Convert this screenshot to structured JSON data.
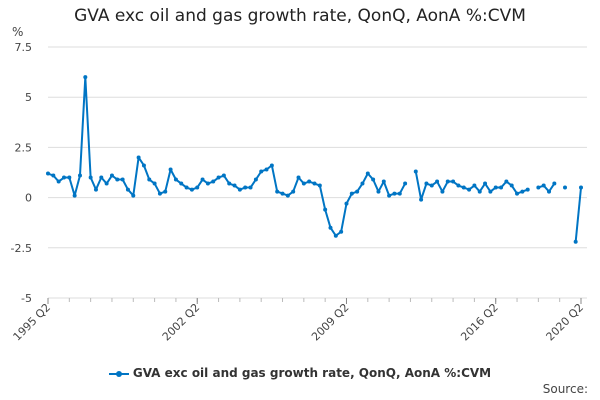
{
  "chart_data": {
    "type": "line",
    "title": "GVA exc oil and gas growth rate, QonQ, AonA %:CVM",
    "ylabel": "%",
    "xlabel": "",
    "x_start": "1995 Q2",
    "x_end": "2020 Q2",
    "x_tick_labels": [
      "1995 Q2",
      "2002 Q2",
      "2009 Q2",
      "2016 Q2",
      "2020 Q2"
    ],
    "x_tick_indices": [
      0,
      28,
      56,
      84,
      100
    ],
    "y_ticks": [
      7.5,
      5,
      2.5,
      0,
      -2.5,
      -5
    ],
    "y_tick_labels": [
      "7.5",
      "5",
      "2.5",
      "0",
      "-2.5",
      "-5"
    ],
    "ylim": [
      -5,
      7.5
    ],
    "grid": true,
    "legend_position": "bottom",
    "series": [
      {
        "name": "GVA exc oil and gas growth rate, QonQ, AonA %:CVM",
        "color": "#0075c4",
        "values": [
          1.2,
          1.1,
          0.8,
          1.0,
          1.0,
          0.1,
          1.1,
          6.0,
          1.0,
          0.4,
          1.0,
          0.7,
          1.1,
          0.9,
          0.9,
          0.4,
          0.1,
          2.0,
          1.6,
          0.9,
          0.7,
          0.2,
          0.3,
          1.4,
          0.9,
          0.7,
          0.5,
          0.4,
          0.5,
          0.9,
          0.7,
          0.8,
          1.0,
          1.1,
          0.7,
          0.6,
          0.4,
          0.5,
          0.5,
          0.9,
          1.3,
          1.4,
          1.6,
          0.3,
          0.2,
          0.1,
          0.3,
          1.0,
          0.7,
          0.8,
          0.7,
          0.6,
          -0.6,
          -1.5,
          -1.9,
          -1.7,
          -0.3,
          0.2,
          0.3,
          0.7,
          1.2,
          0.9,
          0.3,
          0.8,
          0.1,
          0.2,
          0.2,
          0.7,
          null,
          1.3,
          -0.1,
          0.7,
          0.6,
          0.8,
          0.3,
          0.8,
          0.8,
          0.6,
          0.5,
          0.4,
          0.6,
          0.3,
          0.7,
          0.3,
          0.5,
          0.5,
          0.8,
          0.6,
          0.2,
          0.3,
          0.4,
          null,
          0.5,
          0.6,
          0.3,
          0.7,
          null,
          0.5,
          null,
          -2.2,
          0.5
        ]
      }
    ]
  },
  "source_label": "Source:"
}
